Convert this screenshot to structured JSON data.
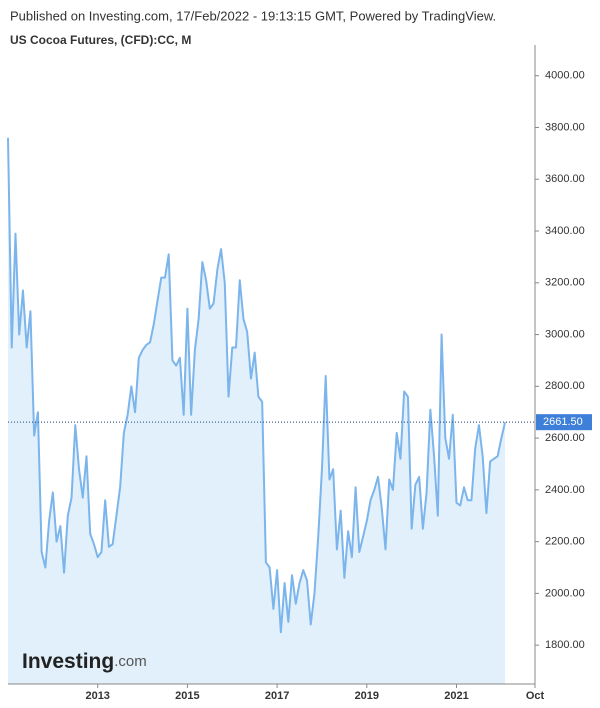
{
  "header": "Published on Investing.com, 17/Feb/2022 - 19:13:15 GMT, Powered by TradingView.",
  "logo": {
    "name": "Investing",
    "suffix": ".com"
  },
  "chart_data": {
    "type": "area",
    "title": "US Cocoa Futures, (CFD):CC, M",
    "color": "#7cb5ec",
    "fill_color": "#e1f0fa",
    "x": [
      2011.0,
      2011.083,
      2011.167,
      2011.25,
      2011.333,
      2011.417,
      2011.5,
      2011.583,
      2011.667,
      2011.75,
      2011.833,
      2011.917,
      2012.0,
      2012.083,
      2012.167,
      2012.25,
      2012.333,
      2012.417,
      2012.5,
      2012.583,
      2012.667,
      2012.75,
      2012.833,
      2012.917,
      2013.0,
      2013.083,
      2013.167,
      2013.25,
      2013.333,
      2013.417,
      2013.5,
      2013.583,
      2013.667,
      2013.75,
      2013.833,
      2013.917,
      2014.0,
      2014.083,
      2014.167,
      2014.25,
      2014.333,
      2014.417,
      2014.5,
      2014.583,
      2014.667,
      2014.75,
      2014.833,
      2014.917,
      2015.0,
      2015.083,
      2015.167,
      2015.25,
      2015.333,
      2015.417,
      2015.5,
      2015.583,
      2015.667,
      2015.75,
      2015.833,
      2015.917,
      2016.0,
      2016.083,
      2016.167,
      2016.25,
      2016.333,
      2016.417,
      2016.5,
      2016.583,
      2016.667,
      2016.75,
      2016.833,
      2016.917,
      2017.0,
      2017.083,
      2017.167,
      2017.25,
      2017.333,
      2017.417,
      2017.5,
      2017.583,
      2017.667,
      2017.75,
      2017.833,
      2017.917,
      2018.0,
      2018.083,
      2018.167,
      2018.25,
      2018.333,
      2018.417,
      2018.5,
      2018.583,
      2018.667,
      2018.75,
      2018.833,
      2018.917,
      2019.0,
      2019.083,
      2019.167,
      2019.25,
      2019.333,
      2019.417,
      2019.5,
      2019.583,
      2019.667,
      2019.75,
      2019.833,
      2019.917,
      2020.0,
      2020.083,
      2020.167,
      2020.25,
      2020.333,
      2020.417,
      2020.5,
      2020.583,
      2020.667,
      2020.75,
      2020.833,
      2020.917,
      2021.0,
      2021.083,
      2021.167,
      2021.25,
      2021.333,
      2021.417,
      2021.5,
      2021.583,
      2021.667,
      2021.75,
      2021.833,
      2021.917,
      2022.0,
      2022.083
    ],
    "values": [
      3760,
      2950,
      3390,
      3000,
      3170,
      2950,
      3090,
      2610,
      2700,
      2160,
      2100,
      2280,
      2390,
      2200,
      2260,
      2080,
      2300,
      2370,
      2650,
      2480,
      2370,
      2530,
      2230,
      2190,
      2140,
      2160,
      2360,
      2180,
      2190,
      2300,
      2410,
      2620,
      2690,
      2800,
      2700,
      2910,
      2940,
      2960,
      2970,
      3040,
      3130,
      3220,
      3220,
      3310,
      2900,
      2880,
      2910,
      2690,
      3100,
      2690,
      2940,
      3060,
      3280,
      3210,
      3100,
      3120,
      3250,
      3330,
      3200,
      2760,
      2950,
      2950,
      3210,
      3060,
      3010,
      2830,
      2930,
      2760,
      2740,
      2120,
      2100,
      1940,
      2090,
      1850,
      2040,
      1890,
      2070,
      1960,
      2040,
      2090,
      2050,
      1880,
      2000,
      2220,
      2480,
      2840,
      2440,
      2480,
      2170,
      2320,
      2060,
      2240,
      2140,
      2410,
      2160,
      2220,
      2280,
      2360,
      2400,
      2450,
      2330,
      2170,
      2440,
      2400,
      2620,
      2520,
      2780,
      2760,
      2250,
      2420,
      2450,
      2250,
      2390,
      2710,
      2530,
      2300,
      3000,
      2600,
      2520,
      2690,
      2350,
      2340,
      2410,
      2360,
      2360,
      2560,
      2650,
      2530,
      2310,
      2510,
      2520,
      2530,
      2600,
      2661.5
    ],
    "last_price": {
      "value": 2661.5,
      "label": "2661.50"
    },
    "xlim": [
      2011.0,
      2022.75
    ],
    "xticks": [
      2013,
      2015,
      2017,
      2019,
      2021,
      {
        "value": 2022.75,
        "label": "Oct"
      }
    ],
    "ylim": [
      1650,
      4080
    ],
    "yticks": [
      {
        "value": 1800,
        "label": "1800.00"
      },
      {
        "value": 2000,
        "label": "2000.00"
      },
      {
        "value": 2200,
        "label": "2200.00"
      },
      {
        "value": 2400,
        "label": "2400.00"
      },
      {
        "value": 2600,
        "label": "2600.00"
      },
      {
        "value": 2800,
        "label": "2800.00"
      },
      {
        "value": 3000,
        "label": "3000.00"
      },
      {
        "value": 3200,
        "label": "3200.00"
      },
      {
        "value": 3400,
        "label": "3400.00"
      },
      {
        "value": 3600,
        "label": "3600.00"
      },
      {
        "value": 3800,
        "label": "3800.00"
      },
      {
        "value": 4000,
        "label": "4000.00"
      }
    ]
  }
}
